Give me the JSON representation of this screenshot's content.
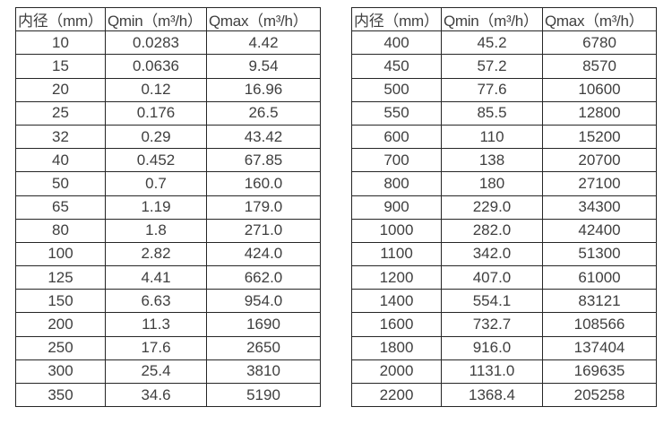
{
  "tables": [
    {
      "name": "flow-spec-table-left",
      "headers": [
        "内径（mm）",
        "Qmin（m³/h）",
        "Qmax（m³/h）"
      ],
      "rows": [
        [
          "10",
          "0.0283",
          "4.42"
        ],
        [
          "15",
          "0.0636",
          "9.54"
        ],
        [
          "20",
          "0.12",
          "16.96"
        ],
        [
          "25",
          "0.176",
          "26.5"
        ],
        [
          "32",
          "0.29",
          "43.42"
        ],
        [
          "40",
          "0.452",
          "67.85"
        ],
        [
          "50",
          "0.7",
          "160.0"
        ],
        [
          "65",
          "1.19",
          "179.0"
        ],
        [
          "80",
          "1.8",
          "271.0"
        ],
        [
          "100",
          "2.82",
          "424.0"
        ],
        [
          "125",
          "4.41",
          "662.0"
        ],
        [
          "150",
          "6.63",
          "954.0"
        ],
        [
          "200",
          "11.3",
          "1690"
        ],
        [
          "250",
          "17.6",
          "2650"
        ],
        [
          "300",
          "25.4",
          "3810"
        ],
        [
          "350",
          "34.6",
          "5190"
        ]
      ]
    },
    {
      "name": "flow-spec-table-right",
      "headers": [
        "内径（mm）",
        "Qmin（m³/h）",
        "Qmax（m³/h）"
      ],
      "rows": [
        [
          "400",
          "45.2",
          "6780"
        ],
        [
          "450",
          "57.2",
          "8570"
        ],
        [
          "500",
          "77.6",
          "10600"
        ],
        [
          "550",
          "85.5",
          "12800"
        ],
        [
          "600",
          "110",
          "15200"
        ],
        [
          "700",
          "138",
          "20700"
        ],
        [
          "800",
          "180",
          "27100"
        ],
        [
          "900",
          "229.0",
          "34300"
        ],
        [
          "1000",
          "282.0",
          "42400"
        ],
        [
          "1100",
          "342.0",
          "51300"
        ],
        [
          "1200",
          "407.0",
          "61000"
        ],
        [
          "1400",
          "554.1",
          "83121"
        ],
        [
          "1600",
          "732.7",
          "108566"
        ],
        [
          "1800",
          "916.0",
          "137404"
        ],
        [
          "2000",
          "1131.0",
          "169635"
        ],
        [
          "2200",
          "1368.4",
          "205258"
        ]
      ]
    }
  ],
  "colors": {
    "border": "#262626",
    "text": "#3f3f3f",
    "background": "#ffffff"
  }
}
